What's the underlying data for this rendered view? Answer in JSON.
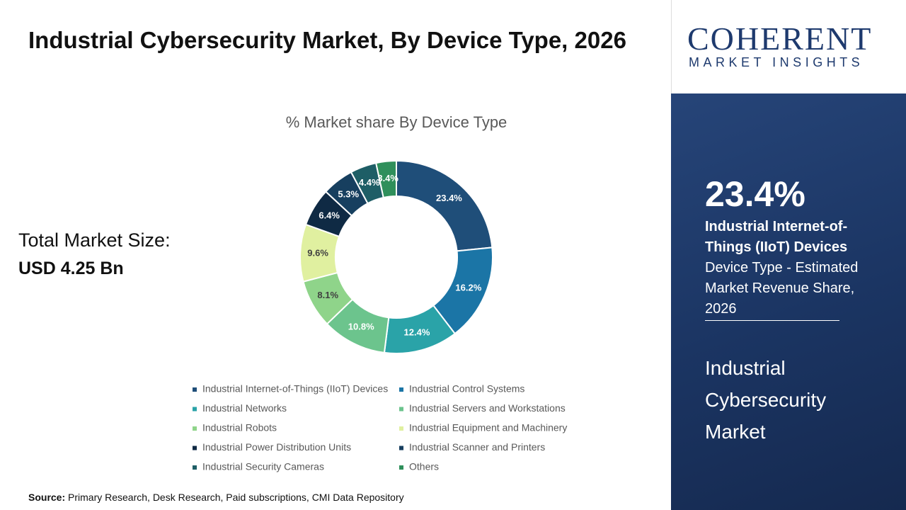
{
  "header": {
    "title": "Industrial Cybersecurity Market, By Device Type, 2026"
  },
  "market_size": {
    "label": "Total Market Size:",
    "value": "USD 4.25 Bn"
  },
  "logo": {
    "name": "COHERENT",
    "tagline": "MARKET INSIGHTS"
  },
  "sidebar": {
    "highlight": "23.4%",
    "segment": "Industrial Internet-of-Things (IIoT) Devices",
    "description": "Device Type - Estimated Market Revenue Share, 2026",
    "market": "Industrial Cybersecurity Market"
  },
  "source": {
    "label": "Source:",
    "text": "Primary Research, Desk Research, Paid subscriptions, CMI Data Repository"
  },
  "chart_data": {
    "type": "donut",
    "title": "% Market share By Device Type",
    "categories": [
      "Industrial Internet-of-Things (IIoT) Devices",
      "Industrial Control Systems",
      "Industrial Networks",
      "Industrial Servers and Workstations",
      "Industrial Robots",
      "Industrial Equipment and Machinery",
      "Industrial Power Distribution Units",
      "Industrial Scanner and Printers",
      "Industrial Security Cameras",
      "Others"
    ],
    "values": [
      23.4,
      16.2,
      12.4,
      10.8,
      8.1,
      9.6,
      6.4,
      5.3,
      4.4,
      3.4
    ],
    "value_labels": [
      "23.4%",
      "16.2%",
      "12.4%",
      "10.8%",
      "8.1%",
      "9.6%",
      "6.4%",
      "5.3%",
      "4.4%",
      "3.4%"
    ],
    "colors": [
      "#1f4e79",
      "#1b75a6",
      "#2aa3a8",
      "#6cc48d",
      "#8fd48a",
      "#e0f0a0",
      "#0f2a44",
      "#173f5f",
      "#1e5e66",
      "#2f8f5b"
    ],
    "legend": "bottom"
  }
}
